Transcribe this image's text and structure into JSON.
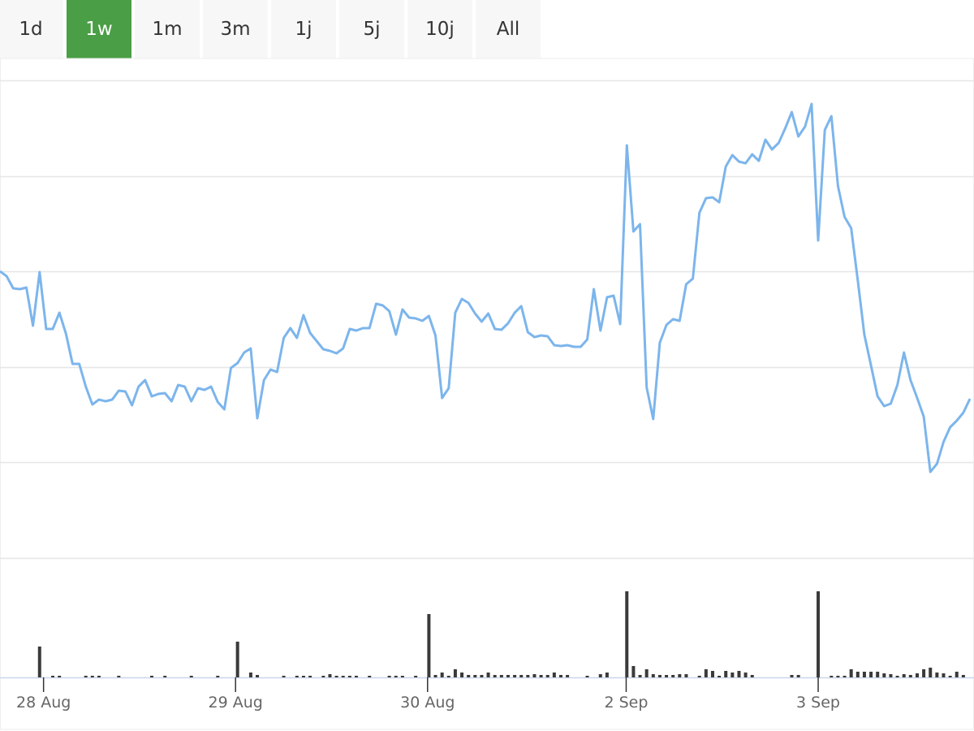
{
  "range_selector": {
    "buttons": [
      "1d",
      "1w",
      "1m",
      "3m",
      "1j",
      "5j",
      "10j",
      "All"
    ],
    "selected": 1,
    "selected_color": "#4a9e46"
  },
  "chart_data": [
    {
      "type": "line",
      "xlim": [
        0,
        147
      ],
      "ylim": [
        0,
        588
      ],
      "grid_lines": [
        0,
        117.6,
        235.2,
        352.8,
        470.4,
        588
      ],
      "grid": true,
      "series": [
        {
          "color": "#7cb5ec",
          "values": [
            353,
            347,
            332,
            331,
            333,
            286,
            352,
            282,
            282,
            302,
            276,
            239,
            239,
            211,
            189,
            195,
            193,
            195,
            206,
            205,
            188,
            211,
            219,
            199,
            202,
            203,
            193,
            213,
            211,
            193,
            209,
            207,
            211,
            192,
            183,
            234,
            240,
            253,
            258,
            172,
            219,
            232,
            229,
            271,
            283,
            271,
            299,
            277,
            267,
            257,
            255,
            252,
            258,
            282,
            280,
            283,
            283,
            313,
            311,
            304,
            275,
            306,
            296,
            295,
            292,
            298,
            274,
            197,
            209,
            302,
            319,
            314,
            301,
            291,
            301,
            282,
            281,
            289,
            302,
            310,
            278,
            272,
            274,
            273,
            262,
            261,
            262,
            260,
            260,
            269,
            331,
            280,
            321,
            323,
            288,
            508,
            402,
            411,
            210,
            171,
            265,
            287,
            294,
            292,
            337,
            344,
            425,
            443,
            444,
            438,
            482,
            496,
            488,
            486,
            497,
            489,
            515,
            503,
            511,
            529,
            549,
            519,
            531,
            559,
            391,
            527,
            544,
            458,
            420,
            406,
            342,
            275,
            237,
            199,
            187,
            190,
            213,
            253,
            219,
            197,
            174,
            106,
            116,
            143,
            161,
            169,
            179,
            196
          ]
        }
      ]
    },
    {
      "type": "bar",
      "xlim": [
        0,
        147
      ],
      "ylim": [
        0,
        147
      ],
      "xticks": [
        {
          "value": 6.6,
          "label": "28 Aug"
        },
        {
          "value": 35.7,
          "label": "29 Aug"
        },
        {
          "value": 64.8,
          "label": "30 Aug"
        },
        {
          "value": 94.9,
          "label": "2 Sep"
        },
        {
          "value": 124,
          "label": "3 Sep"
        }
      ],
      "series": [
        {
          "color": "#3a3a3a",
          "values": [
            0,
            0,
            0,
            0,
            0,
            0,
            38,
            0,
            2,
            2,
            0,
            0,
            0,
            2,
            2,
            2,
            0,
            0,
            2,
            0,
            0,
            0,
            0,
            2,
            0,
            2,
            0,
            0,
            0,
            2,
            0,
            0,
            0,
            2,
            0,
            0,
            44,
            0,
            6,
            3,
            0,
            0,
            0,
            2,
            0,
            2,
            2,
            2,
            0,
            2,
            4,
            2,
            2,
            2,
            2,
            0,
            2,
            0,
            0,
            2,
            2,
            2,
            0,
            2,
            0,
            78,
            3,
            6,
            2,
            10,
            6,
            3,
            3,
            3,
            6,
            3,
            3,
            3,
            3,
            3,
            3,
            4,
            3,
            3,
            6,
            3,
            3,
            0,
            0,
            2,
            0,
            4,
            6,
            0,
            0,
            106,
            14,
            3,
            10,
            4,
            3,
            3,
            3,
            4,
            4,
            0,
            2,
            10,
            8,
            2,
            8,
            6,
            8,
            6,
            3,
            0,
            0,
            0,
            0,
            0,
            3,
            3,
            0,
            0,
            106,
            0,
            2,
            2,
            2,
            10,
            7,
            7,
            7,
            7,
            5,
            4,
            2,
            4,
            3,
            5,
            10,
            12,
            6,
            5,
            2,
            7,
            3,
            0
          ]
        }
      ]
    }
  ]
}
